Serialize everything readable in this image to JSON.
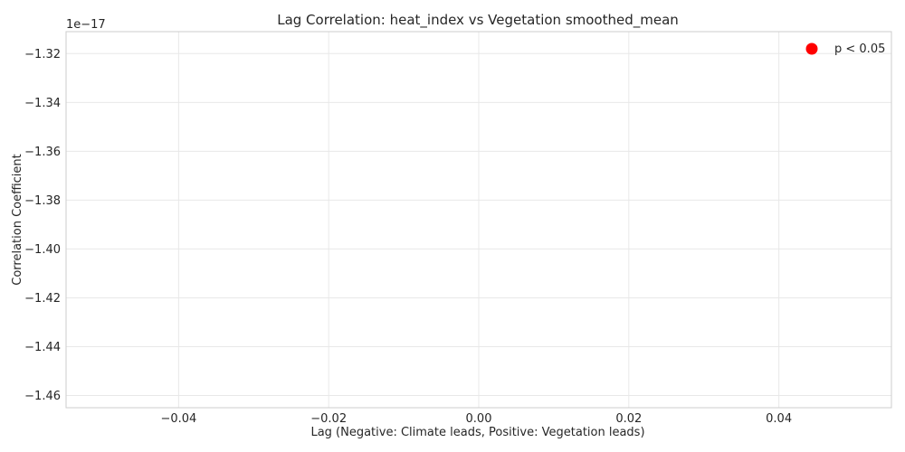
{
  "chart_data": {
    "type": "scatter",
    "title": "Lag Correlation: heat_index vs Vegetation smoothed_mean",
    "xlabel": "Lag (Negative: Climate leads, Positive: Vegetation leads)",
    "ylabel": "Correlation Coefficient",
    "y_offset_label": "1e−17",
    "xlim": [
      -0.055,
      0.055
    ],
    "ylim": [
      -1.465,
      -1.311
    ],
    "x_ticks": [
      -0.04,
      -0.02,
      0.0,
      0.02,
      0.04
    ],
    "x_tick_labels": [
      "−0.04",
      "−0.02",
      "0.00",
      "0.02",
      "0.04"
    ],
    "y_ticks": [
      -1.32,
      -1.34,
      -1.36,
      -1.38,
      -1.4,
      -1.42,
      -1.44,
      -1.46
    ],
    "y_tick_labels": [
      "−1.32",
      "−1.34",
      "−1.36",
      "−1.38",
      "−1.40",
      "−1.42",
      "−1.44",
      "−1.46"
    ],
    "grid": true,
    "legend": {
      "placement": "top-right",
      "entries": [
        {
          "label": "p < 0.05",
          "color": "#ff0000",
          "marker": "circle"
        }
      ]
    },
    "points": []
  }
}
